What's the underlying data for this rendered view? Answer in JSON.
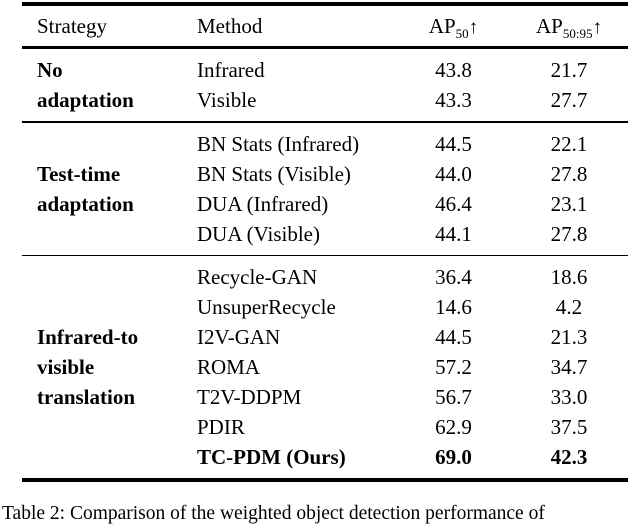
{
  "page": {
    "background_color": "#ffffff",
    "text_color": "#000000"
  },
  "table": {
    "header": {
      "strategy": "Strategy",
      "method": "Method",
      "ap50": {
        "base": "AP",
        "sub": "50",
        "arrow": "↑"
      },
      "ap50_95": {
        "base": "AP",
        "sub": "50:95",
        "arrow": "↑"
      }
    },
    "sections": [
      {
        "strategy_lines": [
          "No",
          "adaptation"
        ],
        "rows": [
          {
            "method": "Infrared",
            "ap50": "43.8",
            "ap50_95": "21.7"
          },
          {
            "method": "Visible",
            "ap50": "43.3",
            "ap50_95": "27.7"
          }
        ]
      },
      {
        "strategy_lines": [
          "Test-time",
          "adaptation"
        ],
        "rows": [
          {
            "method": "BN Stats (Infrared)",
            "ap50": "44.5",
            "ap50_95": "22.1"
          },
          {
            "method": "BN Stats (Visible)",
            "ap50": "44.0",
            "ap50_95": "27.8"
          },
          {
            "method": "DUA (Infrared)",
            "ap50": "46.4",
            "ap50_95": "23.1"
          },
          {
            "method": "DUA (Visible)",
            "ap50": "44.1",
            "ap50_95": "27.8"
          }
        ]
      },
      {
        "strategy_lines": [
          "Infrared-to",
          "visible",
          "translation"
        ],
        "rows": [
          {
            "method": "Recycle-GAN",
            "ap50": "36.4",
            "ap50_95": "18.6"
          },
          {
            "method": "UnsuperRecycle",
            "ap50": "14.6",
            "ap50_95": "4.2"
          },
          {
            "method": "I2V-GAN",
            "ap50": "44.5",
            "ap50_95": "21.3"
          },
          {
            "method": "ROMA",
            "ap50": "57.2",
            "ap50_95": "34.7"
          },
          {
            "method": "T2V-DDPM",
            "ap50": "56.7",
            "ap50_95": "33.0"
          },
          {
            "method": "PDIR",
            "ap50": "62.9",
            "ap50_95": "37.5"
          },
          {
            "method": "TC-PDM (Ours)",
            "ap50": "69.0",
            "ap50_95": "42.3"
          }
        ]
      }
    ],
    "caption_partial": "Table 2: Comparison of the weighted object detection performance of"
  }
}
